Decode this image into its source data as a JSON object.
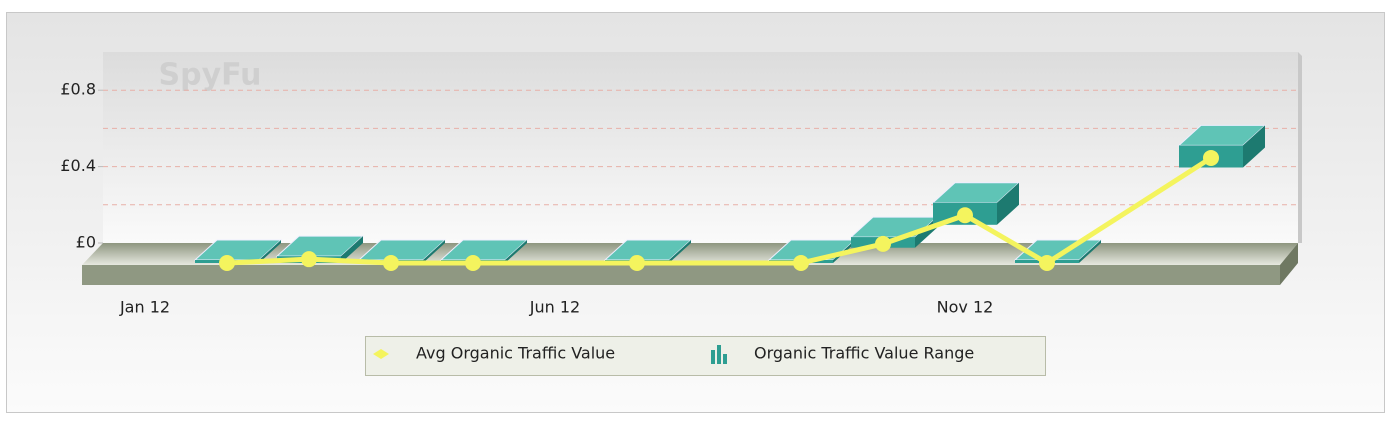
{
  "chart_data": {
    "type": "line",
    "watermark": "SpyFu",
    "categories": [
      "Jan 12",
      null,
      null,
      null,
      null,
      "Jun 12",
      null,
      null,
      null,
      null,
      "Nov 12",
      null,
      null,
      null
    ],
    "series": [
      {
        "name": "Avg Organic Traffic Value",
        "color": "#f4f45e",
        "values": [
          null,
          0,
          0.02,
          0,
          0,
          null,
          0,
          null,
          0,
          0.1,
          0.25,
          0,
          null,
          0.55
        ]
      },
      {
        "name": "Organic Traffic Value Range",
        "color": "#2e9e92",
        "low": [
          null,
          0,
          0,
          0,
          0,
          null,
          0,
          null,
          0,
          0.08,
          0.2,
          0,
          null,
          0.5
        ],
        "high": [
          null,
          0,
          0.02,
          0,
          0,
          null,
          0,
          null,
          0,
          0.12,
          0.3,
          0,
          null,
          0.6
        ]
      }
    ],
    "ylim": [
      0,
      1
    ],
    "yticks": [
      {
        "value": 0,
        "label": "£0"
      },
      {
        "value": 0.4,
        "label": "£0.4"
      },
      {
        "value": 0.8,
        "label": "£0.8"
      }
    ],
    "grid_values": [
      0.2,
      0.4,
      0.6,
      0.8
    ],
    "grid": true
  }
}
